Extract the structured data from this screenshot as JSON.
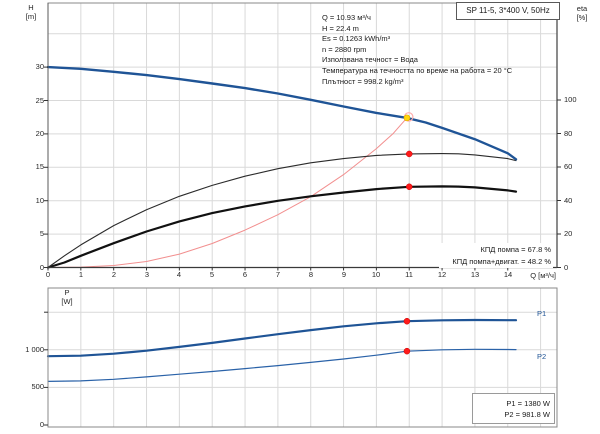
{
  "header": {
    "title": "SP 11-5, 3*400 V, 50Hz"
  },
  "colors": {
    "curve_blue": "#1f5496",
    "system_curve_red": "#f28f8f",
    "point_red": "#ff1a1a",
    "duty_point_yellow": "#ffd60a",
    "duty_ring_pink": "#ffabab",
    "grid": "#d9d9d9",
    "border": "#8a8a8a",
    "axis_dark": "#3a3a3a"
  },
  "info_box": {
    "lines": [
      "Q = 10.93 м³/ч",
      "H = 22.4 m",
      "Es = 0.1263 kWh/m³",
      "n = 2880 rpm",
      "Използвана течност = Вода",
      "Температура на течността по време на работа = 20 °C",
      "Плътност = 998.2 kg/m³"
    ]
  },
  "efficiency_box": {
    "line1": "КПД помпа = 67.8 %",
    "line2": "КПД помпа+двигат. = 48.2 %"
  },
  "power_box": {
    "line1": "P1 = 1380 W",
    "line2": "P2 = 981.8 W"
  },
  "axes": {
    "h": {
      "l1": "H",
      "l2": "[m]"
    },
    "eta": {
      "l1": "eta",
      "l2": "[%]"
    },
    "p": {
      "l1": "P",
      "l2": "[W]"
    },
    "q_label": "Q [м³/ч]"
  },
  "curve_labels": {
    "p1": "P1",
    "p2": "P2"
  },
  "chart_data": [
    {
      "id": "qh-eta-chart",
      "type": "line",
      "title": "SP 11-5, 3*400 V, 50Hz",
      "x_axis": {
        "label": "Q [м³/ч]",
        "min": 0,
        "max": 15.5,
        "ticks": [
          0,
          1,
          2,
          3,
          4,
          5,
          6,
          7,
          8,
          9,
          10,
          11,
          12,
          13,
          14
        ],
        "grid": [
          1,
          2,
          3,
          4,
          5,
          6,
          7,
          8,
          9,
          10,
          11,
          12,
          13,
          14,
          15
        ]
      },
      "left_axis": {
        "label": "H [m]",
        "min": 0,
        "max": 39.6,
        "ticks": [
          0,
          5,
          10,
          15,
          20,
          25,
          30
        ],
        "grid": [
          5,
          10,
          15,
          20,
          25,
          30,
          35
        ]
      },
      "right_axis": {
        "label": "eta [%]",
        "min": 0,
        "max": 158,
        "ticks": [
          0,
          20,
          40,
          60,
          80,
          100
        ]
      },
      "series": [
        {
          "name": "head-curve",
          "axis": "left",
          "color": "#1f5496",
          "width": 2.4,
          "points": [
            [
              0,
              30
            ],
            [
              1,
              29.75
            ],
            [
              2,
              29.3
            ],
            [
              3,
              28.8
            ],
            [
              4,
              28.2
            ],
            [
              5,
              27.55
            ],
            [
              6,
              26.85
            ],
            [
              7,
              26.05
            ],
            [
              8,
              25.1
            ],
            [
              9,
              24.1
            ],
            [
              10,
              23.15
            ],
            [
              10.93,
              22.4
            ],
            [
              11.5,
              21.7
            ],
            [
              12,
              20.9
            ],
            [
              13,
              19.2
            ],
            [
              14,
              17.1
            ],
            [
              14.25,
              16.2
            ]
          ]
        },
        {
          "name": "eta-pump-curve",
          "axis": "right",
          "color": "#2b2b2b",
          "width": 1.1,
          "points": [
            [
              0,
              0
            ],
            [
              0.5,
              7
            ],
            [
              1,
              13.5
            ],
            [
              2,
              25
            ],
            [
              3,
              34.5
            ],
            [
              4,
              42.5
            ],
            [
              5,
              49
            ],
            [
              6,
              54.5
            ],
            [
              7,
              59
            ],
            [
              8,
              62.5
            ],
            [
              9,
              65
            ],
            [
              10,
              66.9
            ],
            [
              11,
              67.8
            ],
            [
              12,
              68
            ],
            [
              12.5,
              67.9
            ],
            [
              13,
              67.2
            ],
            [
              14,
              65
            ],
            [
              14.25,
              63.8
            ]
          ]
        },
        {
          "name": "eta-pump-motor-curve",
          "axis": "right",
          "color": "#111111",
          "width": 2.2,
          "points": [
            [
              0,
              0
            ],
            [
              0.5,
              3
            ],
            [
              1,
              7
            ],
            [
              2,
              14.5
            ],
            [
              3,
              21.5
            ],
            [
              4,
              27.5
            ],
            [
              5,
              32.5
            ],
            [
              6,
              36.5
            ],
            [
              7,
              39.8
            ],
            [
              8,
              42.5
            ],
            [
              9,
              44.8
            ],
            [
              10,
              46.8
            ],
            [
              11,
              48.2
            ],
            [
              12,
              48.4
            ],
            [
              12.5,
              48.3
            ],
            [
              13,
              47.8
            ],
            [
              14,
              46
            ],
            [
              14.25,
              45.3
            ]
          ]
        },
        {
          "name": "system-curve",
          "axis": "left",
          "color": "#f28f8f",
          "width": 1,
          "points": [
            [
              0,
              0
            ],
            [
              1,
              0.06
            ],
            [
              2,
              0.3
            ],
            [
              3,
              0.9
            ],
            [
              4,
              2.0
            ],
            [
              5,
              3.6
            ],
            [
              6,
              5.6
            ],
            [
              7,
              7.9
            ],
            [
              8,
              10.6
            ],
            [
              9,
              13.9
            ],
            [
              10,
              17.8
            ],
            [
              10.5,
              20.0
            ],
            [
              10.93,
              22.4
            ]
          ]
        }
      ],
      "markers": [
        {
          "name": "duty-point",
          "x": 10.93,
          "y": 22.4,
          "axis": "left",
          "style": "duty"
        },
        {
          "name": "eta-pump-point",
          "x": 11,
          "y": 67.8,
          "axis": "right",
          "style": "red"
        },
        {
          "name": "eta-pump-motor-point",
          "x": 11,
          "y": 48.2,
          "axis": "right",
          "style": "red"
        }
      ]
    },
    {
      "id": "power-chart",
      "type": "line",
      "x_axis": {
        "min": 0,
        "max": 15.5,
        "ticks": [],
        "grid": [
          1,
          2,
          3,
          4,
          5,
          6,
          7,
          8,
          9,
          10,
          11,
          12,
          13,
          14,
          15
        ]
      },
      "left_axis": {
        "label": "P [W]",
        "min": 0,
        "max": 1820,
        "ticks": [
          0,
          500,
          1000,
          1500
        ],
        "tick_labels": [
          "0",
          "500",
          "1 000",
          ""
        ],
        "grid": [
          500,
          1000,
          1500
        ]
      },
      "series": [
        {
          "name": "p1-curve",
          "axis": "left",
          "color": "#1f5496",
          "width": 2.2,
          "points": [
            [
              0,
              915
            ],
            [
              1,
              922
            ],
            [
              2,
              948
            ],
            [
              3,
              988
            ],
            [
              4,
              1038
            ],
            [
              5,
              1092
            ],
            [
              6,
              1150
            ],
            [
              7,
              1208
            ],
            [
              8,
              1262
            ],
            [
              9,
              1312
            ],
            [
              10,
              1352
            ],
            [
              10.93,
              1380
            ],
            [
              12,
              1392
            ],
            [
              13,
              1396
            ],
            [
              14,
              1394
            ],
            [
              14.25,
              1393
            ]
          ]
        },
        {
          "name": "p2-curve",
          "axis": "left",
          "color": "#2a62a8",
          "width": 1.2,
          "points": [
            [
              0,
              580
            ],
            [
              1,
              586
            ],
            [
              2,
              608
            ],
            [
              3,
              640
            ],
            [
              4,
              676
            ],
            [
              5,
              712
            ],
            [
              6,
              750
            ],
            [
              7,
              790
            ],
            [
              8,
              833
            ],
            [
              9,
              878
            ],
            [
              10,
              928
            ],
            [
              10.93,
              982
            ],
            [
              12,
              1000
            ],
            [
              13,
              1006
            ],
            [
              14,
              1004
            ],
            [
              14.25,
              1003
            ]
          ]
        }
      ],
      "markers": [
        {
          "name": "p1-point",
          "x": 10.93,
          "y": 1380,
          "axis": "left",
          "style": "red"
        },
        {
          "name": "p2-point",
          "x": 10.93,
          "y": 981.8,
          "axis": "left",
          "style": "red"
        }
      ]
    }
  ]
}
